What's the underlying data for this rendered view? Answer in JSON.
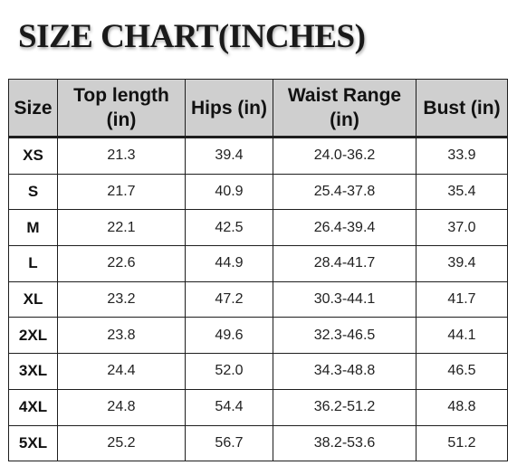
{
  "title": "SIZE CHART(INCHES)",
  "colors": {
    "header_background": "#cfcfcf",
    "border": "#1e1e1e",
    "text": "#111111"
  },
  "table": {
    "headers": [
      {
        "line1": "Size",
        "line2": ""
      },
      {
        "line1": "Top length",
        "line2": "(in)"
      },
      {
        "line1": "Hips (in)",
        "line2": ""
      },
      {
        "line1": "Waist Range",
        "line2": "(in)"
      },
      {
        "line1": "Bust (in)",
        "line2": ""
      }
    ],
    "rows": [
      {
        "size": "XS",
        "top_length": "21.3",
        "hips": "39.4",
        "waist_range": "24.0-36.2",
        "bust": "33.9"
      },
      {
        "size": "S",
        "top_length": "21.7",
        "hips": "40.9",
        "waist_range": "25.4-37.8",
        "bust": "35.4"
      },
      {
        "size": "M",
        "top_length": "22.1",
        "hips": "42.5",
        "waist_range": "26.4-39.4",
        "bust": "37.0"
      },
      {
        "size": "L",
        "top_length": "22.6",
        "hips": "44.9",
        "waist_range": "28.4-41.7",
        "bust": "39.4"
      },
      {
        "size": "XL",
        "top_length": "23.2",
        "hips": "47.2",
        "waist_range": "30.3-44.1",
        "bust": "41.7"
      },
      {
        "size": "2XL",
        "top_length": "23.8",
        "hips": "49.6",
        "waist_range": "32.3-46.5",
        "bust": "44.1"
      },
      {
        "size": "3XL",
        "top_length": "24.4",
        "hips": "52.0",
        "waist_range": "34.3-48.8",
        "bust": "46.5"
      },
      {
        "size": "4XL",
        "top_length": "24.8",
        "hips": "54.4",
        "waist_range": "36.2-51.2",
        "bust": "48.8"
      },
      {
        "size": "5XL",
        "top_length": "25.2",
        "hips": "56.7",
        "waist_range": "38.2-53.6",
        "bust": "51.2"
      }
    ]
  }
}
